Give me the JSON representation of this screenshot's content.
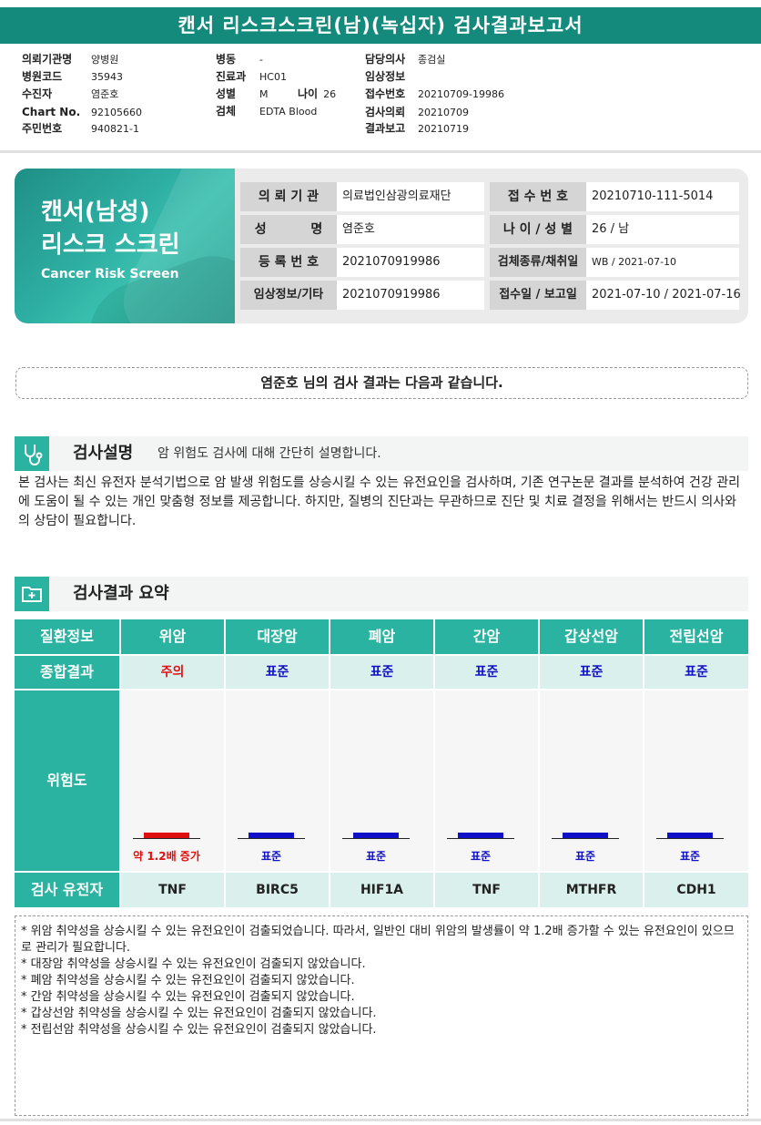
{
  "report_title": "캔서 리스크스크린(남)(녹십자) 검사결과보고서",
  "header": {
    "col1": [
      {
        "label": "의뢰기관명",
        "value": "양병원"
      },
      {
        "label": "병원코드",
        "value": "35943"
      },
      {
        "label": "수진자",
        "value": "염준호"
      },
      {
        "label": "Chart No.",
        "value": "92105660"
      },
      {
        "label": "주민번호",
        "value": "940821-1"
      }
    ],
    "col2": [
      {
        "label": "병동",
        "value": "-"
      },
      {
        "label": "진료과",
        "value": "HC01"
      },
      {
        "label": "성별",
        "value": "M"
      },
      {
        "label": "검체",
        "value": "EDTA Blood"
      }
    ],
    "age": {
      "label": "나이",
      "value": "26"
    },
    "col3": [
      {
        "label": "담당의사",
        "value": "종검실"
      },
      {
        "label": "임상정보",
        "value": ""
      },
      {
        "label": "접수번호",
        "value": "20210709-19986"
      },
      {
        "label": "검사의뢰",
        "value": "20210709"
      },
      {
        "label": "결과보고",
        "value": "20210719"
      }
    ]
  },
  "card": {
    "title_line1": "캔서(남성)",
    "title_line2": "리스크 스크린",
    "subtitle": "Cancer Risk Screen",
    "rows": [
      {
        "k1": "의 뢰 기 관",
        "v1": "의료법인삼광의료재단",
        "k2": "접 수 번 호",
        "v2": "20210710-111-5014"
      },
      {
        "k1": "성          명",
        "v1": "염준호",
        "k2": "나 이 / 성 별",
        "v2": "26 / 남"
      },
      {
        "k1": "등 록 번 호",
        "v1": "2021070919986",
        "k2": "검체종류/채취일",
        "v2": "WB / 2021-07-10"
      },
      {
        "k1": "임상정보/기타",
        "v1": "2021070919986",
        "k2": "접수일 / 보고일",
        "v2": "2021-07-10 / 2021-07-16"
      }
    ]
  },
  "greeting": "염준호 님의 검사 결과는 다음과 같습니다.",
  "section1": {
    "title": "검사설명",
    "subtitle": "암 위험도 검사에 대해 간단히 설명합니다."
  },
  "description": "본 검사는 최신 유전자 분석기법으로 암 발생 위험도를 상승시킬 수 있는 유전요인을 검사하며, 기존 연구논문 결과를 분석하여 건강 관리에 도움이 될 수 있는 개인 맞춤형 정보를 제공합니다. 하지만, 질병의 진단과는 무관하므로 진단 및 치료 결정을 위해서는 반드시 의사와의 상담이 필요합니다.",
  "section2": {
    "title": "검사결과 요약"
  },
  "table": {
    "row_labels": {
      "disease": "질환정보",
      "overall": "종합결과",
      "risk": "위험도",
      "gene": "검사 유전자"
    },
    "columns": [
      {
        "name": "위암",
        "result": "주의",
        "risk_label": "약 1.2배 증가",
        "gene": "TNF",
        "level": "caution"
      },
      {
        "name": "대장암",
        "result": "표준",
        "risk_label": "표준",
        "gene": "BIRC5",
        "level": "standard"
      },
      {
        "name": "폐암",
        "result": "표준",
        "risk_label": "표준",
        "gene": "HIF1A",
        "level": "standard"
      },
      {
        "name": "간암",
        "result": "표준",
        "risk_label": "표준",
        "gene": "TNF",
        "level": "standard"
      },
      {
        "name": "갑상선암",
        "result": "표준",
        "risk_label": "표준",
        "gene": "MTHFR",
        "level": "standard"
      },
      {
        "name": "전립선암",
        "result": "표준",
        "risk_label": "표준",
        "gene": "CDH1",
        "level": "standard"
      }
    ]
  },
  "colors": {
    "accent": "#2ab3a0",
    "title_bar": "#138a7c",
    "caution": "#e01010",
    "standard": "#1010c8"
  },
  "notes": [
    "* 위암 취약성을 상승시킬 수 있는 유전요인이 검출되었습니다. 따라서, 일반인 대비 위암의 발생률이 약 1.2배 증가할 수 있는 유전요인이 있으므로 관리가 필요합니다.",
    "* 대장암 취약성을 상승시킬 수 있는 유전요인이 검출되지 않았습니다.",
    "* 폐암 취약성을 상승시킬 수 있는 유전요인이 검출되지 않았습니다.",
    "* 간암 취약성을 상승시킬 수 있는 유전요인이 검출되지 않았습니다.",
    "* 갑상선암 취약성을 상승시킬 수 있는 유전요인이 검출되지 않았습니다.",
    "* 전립선암 취약성을 상승시킬 수 있는 유전요인이 검출되지 않았습니다."
  ]
}
